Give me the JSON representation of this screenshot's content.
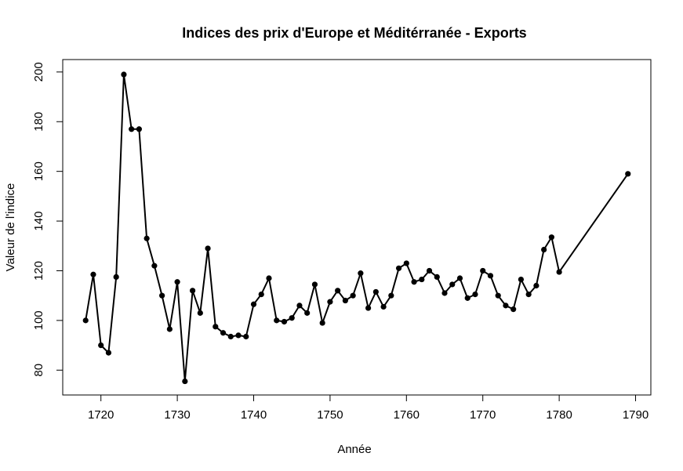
{
  "chart_data": {
    "type": "line",
    "title": "Indices des prix d'Europe et Méditérranée - Exports",
    "xlabel": "Année",
    "ylabel": "Valeur de l'indice",
    "xlim": [
      1715,
      1792
    ],
    "ylim": [
      70,
      205
    ],
    "xticks": [
      1720,
      1730,
      1740,
      1750,
      1760,
      1770,
      1780,
      1790
    ],
    "yticks": [
      80,
      100,
      120,
      140,
      160,
      180,
      200
    ],
    "grid": false,
    "legend": "none",
    "line_color": "#000000",
    "series": [
      {
        "x": [
          1718,
          1719,
          1720,
          1721,
          1722,
          1723,
          1724,
          1725,
          1726,
          1727,
          1728,
          1729,
          1730,
          1731,
          1732,
          1733,
          1734,
          1735,
          1736,
          1737,
          1738,
          1739,
          1740,
          1741,
          1742,
          1743,
          1744,
          1745,
          1746,
          1747,
          1748,
          1749,
          1750,
          1751,
          1752,
          1753,
          1754,
          1755,
          1756,
          1757,
          1758,
          1759,
          1760,
          1761,
          1762,
          1763,
          1764,
          1765,
          1766,
          1767,
          1768,
          1769,
          1770,
          1771,
          1772,
          1773,
          1774,
          1775,
          1776,
          1777,
          1778,
          1779,
          1780,
          1789
        ],
        "y": [
          100,
          118.5,
          90,
          87,
          117.5,
          199,
          177,
          177,
          133,
          122,
          110,
          96.5,
          115.5,
          75.5,
          112,
          103,
          129,
          97.5,
          95,
          93.5,
          94,
          93.5,
          106.5,
          110.5,
          117,
          100,
          99.5,
          101,
          106,
          103,
          114.5,
          99,
          107.5,
          112,
          108,
          110,
          119,
          105,
          111.5,
          105.5,
          110,
          121,
          123,
          115.5,
          116.5,
          120,
          117.5,
          111,
          114.5,
          117,
          109,
          110.5,
          120,
          118,
          110,
          106,
          104.5,
          116.5,
          110.5,
          114,
          128.5,
          133.5,
          119.5,
          159
        ]
      }
    ]
  }
}
